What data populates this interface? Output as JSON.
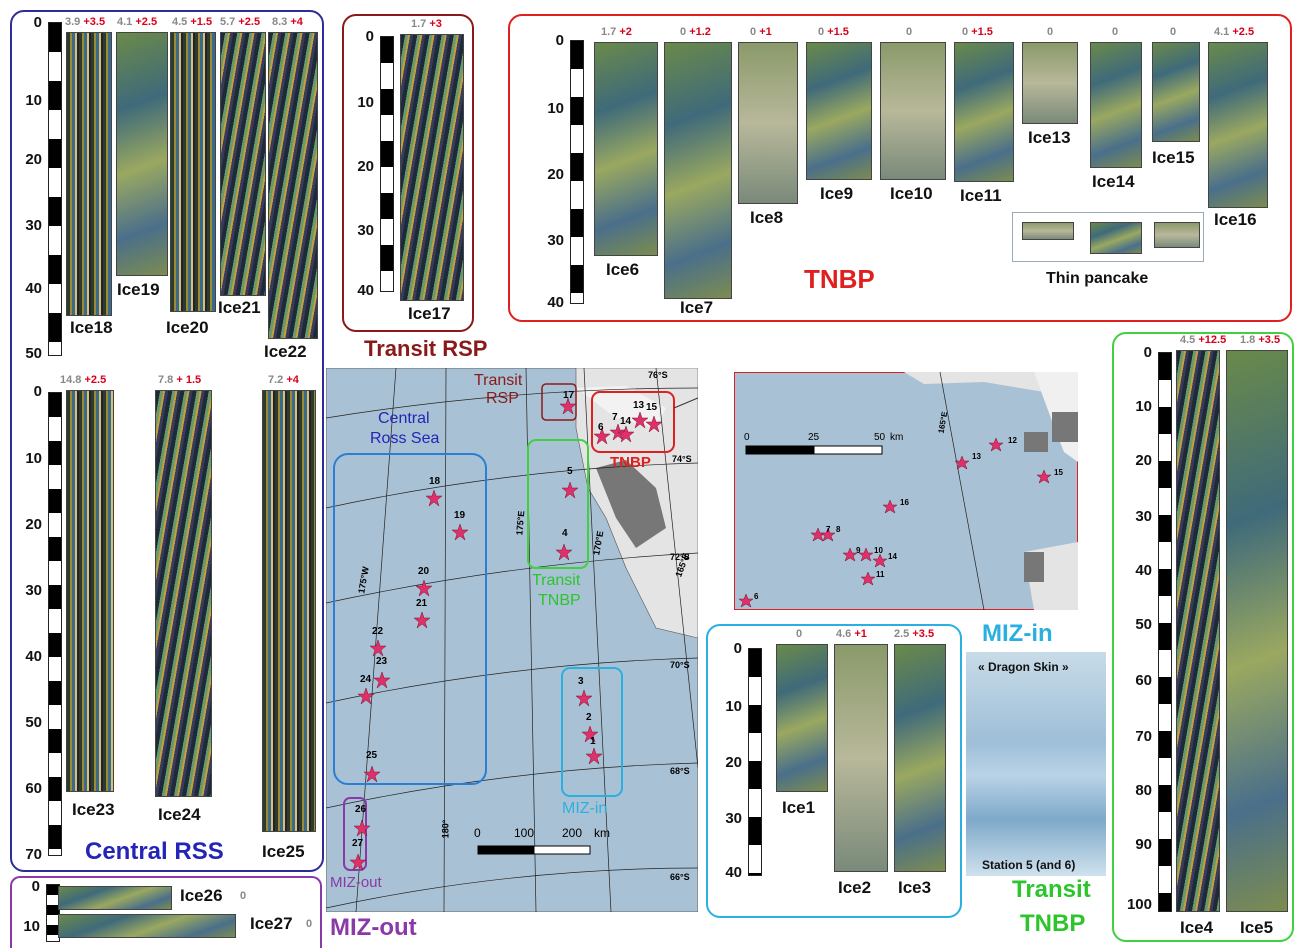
{
  "regions": {
    "central_rss": "Central RSS",
    "transit_rsp": "Transit RSP",
    "tnbp": "TNBP",
    "miz_in": "MIZ-in",
    "transit_tnbp_1": "Transit",
    "transit_tnbp_2": "TNBP",
    "miz_out": "MIZ-out"
  },
  "cores": {
    "ice18": {
      "label": "Ice18",
      "g": "3.9",
      "r": "+3.5"
    },
    "ice19": {
      "label": "Ice19",
      "g": "4.1",
      "r": "+2.5"
    },
    "ice20": {
      "label": "Ice20",
      "g": "4.5",
      "r": "+1.5"
    },
    "ice21": {
      "label": "Ice21",
      "g": "5.7",
      "r": "+2.5"
    },
    "ice22": {
      "label": "Ice22",
      "g": "8.3",
      "r": "+4"
    },
    "ice23": {
      "label": "Ice23",
      "g": "14.8",
      "r": "+2.5"
    },
    "ice24": {
      "label": "Ice24",
      "g": "7.8",
      "r": "+ 1.5"
    },
    "ice25": {
      "label": "Ice25",
      "g": "7.2",
      "r": "+4"
    },
    "ice17": {
      "label": "Ice17",
      "g": "1.7",
      "r": "+3"
    },
    "ice6": {
      "label": "Ice6",
      "g": "1.7",
      "r": "+2"
    },
    "ice7": {
      "label": "Ice7",
      "g": "0",
      "r": "+1.2"
    },
    "ice8": {
      "label": "Ice8",
      "g": "0",
      "r": "+1"
    },
    "ice9": {
      "label": "Ice9",
      "g": "0",
      "r": "+1.5"
    },
    "ice10": {
      "label": "Ice10",
      "g": "0",
      "r": ""
    },
    "ice11": {
      "label": "Ice11",
      "g": "0",
      "r": "+1.5"
    },
    "ice13": {
      "label": "Ice13",
      "g": "0",
      "r": ""
    },
    "ice14": {
      "label": "Ice14",
      "g": "0",
      "r": ""
    },
    "ice15": {
      "label": "Ice15",
      "g": "0",
      "r": ""
    },
    "ice16": {
      "label": "Ice16",
      "g": "4.1",
      "r": "+2.5"
    },
    "ice4": {
      "label": "Ice4",
      "g": "4.5",
      "r": "+12.5"
    },
    "ice5": {
      "label": "Ice5",
      "g": "1.8",
      "r": "+3.5"
    },
    "ice1": {
      "label": "Ice1",
      "g": "0",
      "r": ""
    },
    "ice2": {
      "label": "Ice2",
      "g": "4.6",
      "r": "+1"
    },
    "ice3": {
      "label": "Ice3",
      "g": "2.5",
      "r": "+3.5"
    },
    "ice26": {
      "label": "Ice26",
      "g": "0",
      "r": ""
    },
    "ice27": {
      "label": "Ice27",
      "g": "0",
      "r": ""
    }
  },
  "thin_pancake": "Thin pancake",
  "photo": {
    "title": "« Dragon Skin »",
    "caption": "Station 5 (and 6)"
  },
  "scales": {
    "rss_top": [
      "0",
      "10",
      "20",
      "30",
      "40",
      "50"
    ],
    "rss_bottom": [
      "0",
      "10",
      "20",
      "30",
      "40",
      "50",
      "60",
      "70"
    ],
    "rsp": [
      "0",
      "10",
      "20",
      "30",
      "40"
    ],
    "tnbp": [
      "0",
      "10",
      "20",
      "30",
      "40"
    ],
    "miz": [
      "0",
      "10",
      "20",
      "30",
      "40"
    ],
    "tnbp_transit": [
      "0",
      "10",
      "20",
      "30",
      "40",
      "50",
      "60",
      "70",
      "80",
      "90",
      "100"
    ],
    "mizout": [
      "0",
      "10"
    ]
  },
  "map": {
    "region_labels": {
      "transit_rsp_1": "Transit",
      "transit_rsp_2": "RSP",
      "central_1": "Central",
      "central_2": "Ross Sea",
      "tnbp": "TNBP",
      "transit_tnbp_1": "Transit",
      "transit_tnbp_2": "TNBP",
      "miz_in": "MIZ-in",
      "miz_out": "MIZ-out"
    },
    "lat": [
      "76°S",
      "74°S",
      "72°S",
      "70°S",
      "68°S",
      "66°S"
    ],
    "lon": [
      "175°W",
      "180°",
      "175°E",
      "170°E",
      "165°E"
    ],
    "scale": [
      "0",
      "100",
      "200",
      "km"
    ],
    "stations": [
      "17",
      "6",
      "7",
      "14",
      "13",
      "15",
      "5",
      "4",
      "18",
      "19",
      "20",
      "21",
      "22",
      "23",
      "24",
      "25",
      "3",
      "2",
      "1",
      "26",
      "27"
    ]
  },
  "inset": {
    "scale": [
      "0",
      "25",
      "50",
      "km"
    ],
    "lon": "165°E",
    "stations": [
      "12",
      "13",
      "15",
      "16",
      "7",
      "8",
      "9",
      "10",
      "14",
      "11",
      "6"
    ]
  }
}
